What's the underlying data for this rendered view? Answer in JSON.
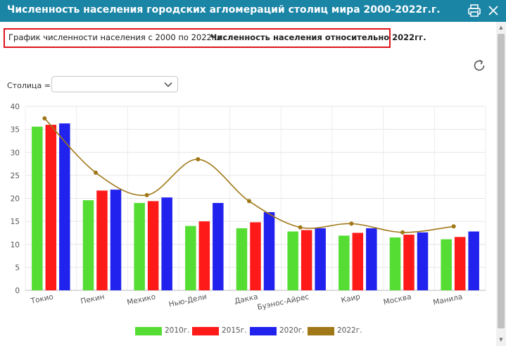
{
  "window": {
    "title": "Численность населения городских агломераций столиц мира 2000-2022г.г.",
    "print_icon": "printer-icon",
    "close_icon": "close-icon"
  },
  "tabs": [
    {
      "label": "График численности населения с 2000 по 2022г.г.",
      "active": false
    },
    {
      "label": "Численность населения относительно 2022гг.",
      "active": true
    }
  ],
  "toolbar": {
    "refresh_icon": "refresh-icon"
  },
  "filter": {
    "label": "Столица =",
    "value": ""
  },
  "colors": {
    "s2010": "#55dd33",
    "s2015": "#ff1a1a",
    "s2020": "#2222ee",
    "s2022": "#a07818",
    "header": "#1b85a6",
    "highlight": "#e0141c"
  },
  "chart_data": {
    "type": "bar",
    "categories": [
      "Токио",
      "Пекин",
      "Мехико",
      "Нью-Дели",
      "Дакка",
      "Буэнос-Айрес",
      "Каир",
      "Москва",
      "Манила"
    ],
    "series": [
      {
        "name": "2010г.",
        "type": "bar",
        "values": [
          35.6,
          19.6,
          19.0,
          14.0,
          13.5,
          12.8,
          11.9,
          11.5,
          11.1
        ]
      },
      {
        "name": "2015г.",
        "type": "bar",
        "values": [
          36.0,
          21.7,
          19.4,
          15.0,
          14.8,
          13.1,
          12.5,
          12.1,
          11.6
        ]
      },
      {
        "name": "2020г.",
        "type": "bar",
        "values": [
          36.3,
          21.9,
          20.2,
          19.0,
          17.0,
          13.5,
          13.5,
          12.6,
          12.8
        ]
      },
      {
        "name": "2022г.",
        "type": "line",
        "values": [
          37.4,
          25.6,
          20.7,
          28.5,
          19.4,
          13.7,
          14.5,
          12.6,
          13.9
        ]
      }
    ],
    "y_ticks": [
      "0",
      "5",
      "10",
      "15",
      "20",
      "25",
      "30",
      "35",
      "40"
    ],
    "ylim": [
      0,
      40
    ],
    "grid": true,
    "legend": "bottom"
  }
}
